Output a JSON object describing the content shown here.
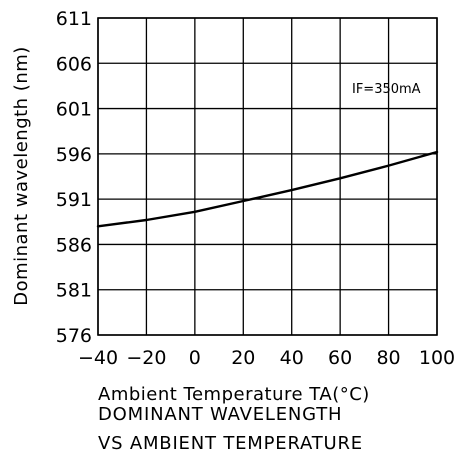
{
  "chart_data": {
    "type": "line",
    "title": "",
    "xlabel": "Ambient Temperature TA(°C)",
    "ylabel": "Dominant wavelength (nm)",
    "x_ticks": [
      -40,
      -20,
      0,
      20,
      40,
      60,
      80,
      100
    ],
    "y_ticks": [
      576,
      581,
      586,
      591,
      596,
      601,
      606,
      611
    ],
    "xlim": [
      -40,
      100
    ],
    "ylim": [
      576,
      611
    ],
    "grid": true,
    "annotation": "IF=350mA",
    "series": [
      {
        "x": [
          -40,
          -20,
          0,
          20,
          40,
          60,
          80,
          100
        ],
        "y": [
          588.0,
          588.7,
          589.6,
          590.8,
          592.0,
          593.3,
          594.7,
          596.2
        ]
      }
    ]
  },
  "caption": {
    "line1": "DOMINANT WAVELENGTH",
    "line2": "VS AMBIENT TEMPERATURE"
  },
  "colors": {
    "line": "#000000",
    "grid": "#000000",
    "background": "#ffffff"
  }
}
